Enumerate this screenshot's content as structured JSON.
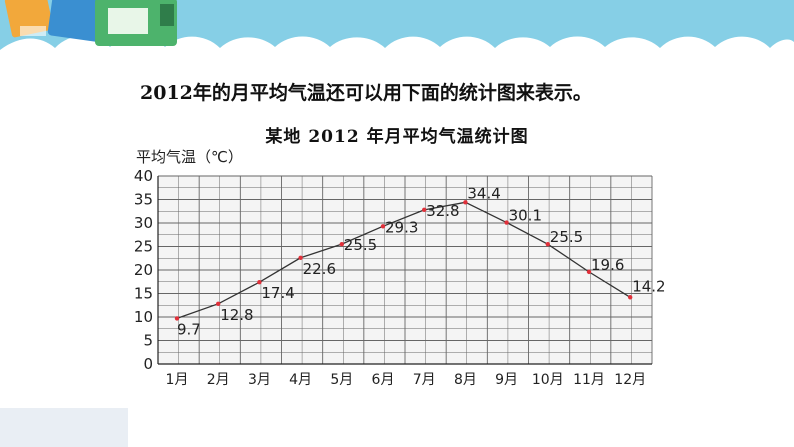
{
  "heading": "2012年的月平均气温还可以用下面的统计图来表示。",
  "chart_data": {
    "type": "line",
    "title": "某地 2012 年月平均气温统计图",
    "ylabel": "平均气温（℃）",
    "xlabel": "",
    "categories": [
      "1月",
      "2月",
      "3月",
      "4月",
      "5月",
      "6月",
      "7月",
      "8月",
      "9月",
      "10月",
      "11月",
      "12月"
    ],
    "values": [
      9.7,
      12.8,
      17.4,
      22.6,
      25.5,
      29.3,
      32.8,
      34.4,
      30.1,
      25.5,
      19.6,
      14.2
    ],
    "value_labels": [
      "9.7",
      "12.8",
      "17.4",
      "22.6",
      "25.5",
      "29.3",
      "32.8",
      "34.4",
      "30.1",
      "25.5",
      "19.6",
      "14.2"
    ],
    "ylim": [
      0,
      40
    ],
    "yticks": [
      "0",
      "5",
      "10",
      "15",
      "20",
      "25",
      "30",
      "35",
      "40"
    ],
    "grid": true,
    "line_color": "#333333",
    "marker_color": "#e0303a"
  },
  "colors": {
    "banner": "#86cfe6",
    "grid": "#666666",
    "grid_fill": "#f4f4f4"
  }
}
